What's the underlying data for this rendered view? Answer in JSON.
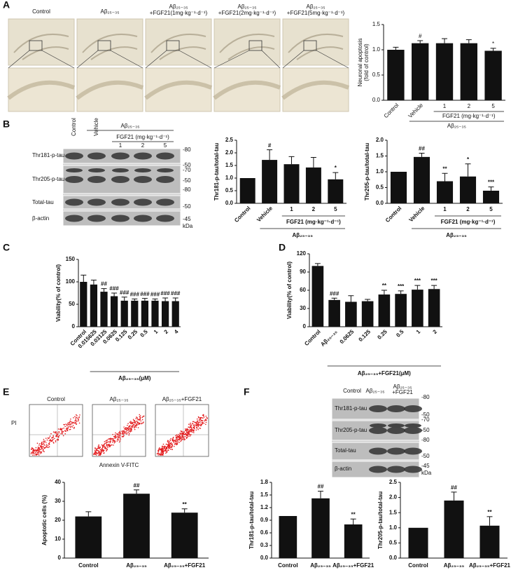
{
  "panel_letters": [
    "A",
    "B",
    "C",
    "D",
    "E",
    "F"
  ],
  "microscopy": {
    "labels": [
      [
        "Control"
      ],
      [
        "Aβ₂₅₋₃₅"
      ],
      [
        "Aβ₂₅₋₃₅",
        "+FGF21(1mg·kg⁻¹·d⁻¹)"
      ],
      [
        "Aβ₂₅₋₃₅",
        "+FGF21(2mg·kg⁻¹·d⁻¹)"
      ],
      [
        "Aβ₂₅₋₃₅",
        "+FGF21(5mg·kg⁻¹·d⁻¹)"
      ]
    ]
  },
  "blot_b": {
    "lanes": [
      "Control",
      "Vehicle",
      "1",
      "2",
      "5"
    ],
    "treatment": "Aβ₂₅₋₃₅",
    "dose": "FGF21 (mg·kg⁻¹·d⁻¹)",
    "rows": [
      "Thr181-p-tau",
      "Thr205-p-tau",
      "Total-tau",
      "β-actin"
    ],
    "markers": [
      "-80",
      "-50",
      "-70",
      "-50",
      "-80",
      "-50",
      "-45"
    ],
    "unit": "kDa"
  },
  "flow": {
    "labels": [
      "Control",
      "Aβ₂₅₋₃₅",
      "Aβ₂₅₋₃₅+FGF21"
    ],
    "y_label": "PI",
    "x_label": "Annexin V-FITC"
  },
  "blot_f": {
    "lanes": [
      [
        "Control"
      ],
      [
        "Aβ₂₅₋₃₅"
      ],
      [
        "Aβ₂₅₋₃₅",
        "+FGF21"
      ]
    ],
    "rows": [
      "Thr181-p-tau",
      "Thr205-p-tau",
      "Total-tau",
      "β-actin"
    ],
    "markers": [
      "-80",
      "-50",
      "-70",
      "-50",
      "-80",
      "-50",
      "-45"
    ],
    "unit": "kDa"
  },
  "chart_data": [
    {
      "type": "bar",
      "ylabel": [
        "Neuronal apoptosis",
        "(fold of control)"
      ],
      "categories": [
        "Control",
        "Vehicle",
        "1",
        "2",
        "5"
      ],
      "values": [
        1.0,
        1.13,
        1.13,
        1.13,
        0.98
      ],
      "errors": [
        0.05,
        0.05,
        0.09,
        0.07,
        0.05
      ],
      "annotations": [
        null,
        "#",
        null,
        null,
        "*"
      ],
      "group_labels": [
        "FGF21 (mg·kg⁻¹·d⁻¹)",
        "Aβ₂₅₋₃₅"
      ],
      "color": "#111111",
      "ylim": [
        0,
        1.5
      ],
      "yticks": [
        {
          "value": 0,
          "label": "0.0"
        },
        0.5,
        {
          "value": 1,
          "label": "1.0"
        },
        1.5
      ]
    },
    {
      "type": "bar",
      "ylabel": [
        "Thr181-p-tau/total-tau"
      ],
      "categories": [
        "Control",
        "Vehicle",
        "1",
        "2",
        "5"
      ],
      "values": [
        1.0,
        1.72,
        1.55,
        1.42,
        0.95
      ],
      "errors": [
        null,
        0.4,
        0.3,
        0.4,
        0.27
      ],
      "annotations": [
        null,
        "#",
        null,
        null,
        "*"
      ],
      "group_labels": [
        "FGF21 (mg·kg⁻¹·d⁻¹)",
        "Aβ₂₅₋₃₅"
      ],
      "color": "#111111",
      "ylim": [
        0,
        2.5
      ],
      "yticks": [
        {
          "value": 0,
          "label": "0.0"
        },
        0.5,
        {
          "value": 1,
          "label": "1.0"
        },
        1.5,
        {
          "value": 2,
          "label": "2.0"
        },
        2.5
      ]
    },
    {
      "type": "bar",
      "ylabel": [
        "Thr205-p-tau/total-tau"
      ],
      "categories": [
        "Control",
        "Vehicle",
        "1",
        "2",
        "5"
      ],
      "values": [
        1.0,
        1.47,
        0.7,
        0.85,
        0.4
      ],
      "errors": [
        null,
        0.12,
        0.25,
        0.4,
        0.12
      ],
      "annotations": [
        null,
        "##",
        "**",
        "*",
        "***"
      ],
      "group_labels": [
        "FGF21 (mg·kg⁻¹·d⁻¹)",
        "Aβ₂₅₋₃₅"
      ],
      "color": "#111111",
      "ylim": [
        0,
        2
      ],
      "yticks": [
        {
          "value": 0,
          "label": "0.0"
        },
        0.5,
        {
          "value": 1,
          "label": "1.0"
        },
        1.5,
        {
          "value": 2,
          "label": "2.0"
        }
      ]
    },
    {
      "type": "bar",
      "ylabel": [
        "Viability(% of control)"
      ],
      "categories": [
        "Control",
        "0.015625",
        "0.03125",
        "0.0625",
        "0.125",
        "0.25",
        "0.5",
        "1",
        "2",
        "4"
      ],
      "values": [
        100,
        94,
        78,
        68,
        58,
        58,
        58,
        58,
        57,
        57
      ],
      "errors": [
        15,
        10,
        7,
        7,
        8,
        4,
        5,
        4,
        7,
        7
      ],
      "annotations": [
        null,
        null,
        "##",
        "###",
        "###",
        "###",
        "###",
        "###",
        "###",
        "###"
      ],
      "group_labels": [
        "Aβ₂₅₋₃₅(μM)"
      ],
      "color": "#111111",
      "ylim": [
        0,
        150
      ],
      "yticks": [
        0,
        50,
        100,
        150
      ]
    },
    {
      "type": "bar",
      "ylabel": [
        "Viability(% of control)"
      ],
      "categories": [
        "Control",
        "Aβ₂₅₋₃₅",
        "0.0625",
        "0.125",
        "0.25",
        "0.5",
        "1",
        "2"
      ],
      "values": [
        100,
        44,
        41,
        42,
        53,
        54,
        61,
        62
      ],
      "errors": [
        4,
        3,
        10,
        3,
        7,
        5,
        7,
        6
      ],
      "annotations": [
        null,
        "###",
        null,
        null,
        "**",
        "***",
        "***",
        "***"
      ],
      "group_labels": [
        "Aβ₂₅₋₃₅+FGF21(μM)"
      ],
      "color": "#111111",
      "ylim": [
        0,
        120
      ],
      "yticks": [
        0,
        30,
        60,
        90,
        120
      ]
    },
    {
      "type": "bar",
      "ylabel": [
        "Apoptotic cells (%)"
      ],
      "categories": [
        "Control",
        "Aβ₂₅₋₃₅",
        "Aβ₂₅₋₃₅+FGF21"
      ],
      "values": [
        22,
        34,
        24
      ],
      "errors": [
        2.5,
        2,
        2
      ],
      "annotations": [
        null,
        "##",
        "**"
      ],
      "color": "#111111",
      "ylim": [
        0,
        40
      ],
      "yticks": [
        0,
        10,
        20,
        30,
        40
      ]
    },
    {
      "type": "bar",
      "ylabel": [
        "Thr181-p-tau/total-tau"
      ],
      "categories": [
        "Control",
        "Aβ₂₅₋₃₅",
        "Aβ₂₅₋₃₅+FGF21"
      ],
      "values": [
        1.0,
        1.42,
        0.8
      ],
      "errors": [
        null,
        0.17,
        0.13
      ],
      "annotations": [
        null,
        "##",
        "**"
      ],
      "color": "#111111",
      "ylim": [
        0,
        1.8
      ],
      "yticks": [
        {
          "value": 0,
          "label": "0.0"
        },
        0.3,
        0.6,
        0.9,
        1.2,
        1.5,
        1.8
      ]
    },
    {
      "type": "bar",
      "ylabel": [
        "Thr205-p-tau/total-tau"
      ],
      "categories": [
        "Control",
        "Aβ₂₅₋₃₅",
        "Aβ₂₅₋₃₅+FGF21"
      ],
      "values": [
        1.0,
        1.9,
        1.07
      ],
      "errors": [
        null,
        0.28,
        0.3
      ],
      "annotations": [
        null,
        "##",
        "**"
      ],
      "color": "#111111",
      "ylim": [
        0,
        2.5
      ],
      "yticks": [
        {
          "value": 0,
          "label": "0.0"
        },
        0.5,
        {
          "value": 1,
          "label": "1.0"
        },
        1.5,
        {
          "value": 2,
          "label": "2.0"
        },
        2.5
      ]
    }
  ]
}
